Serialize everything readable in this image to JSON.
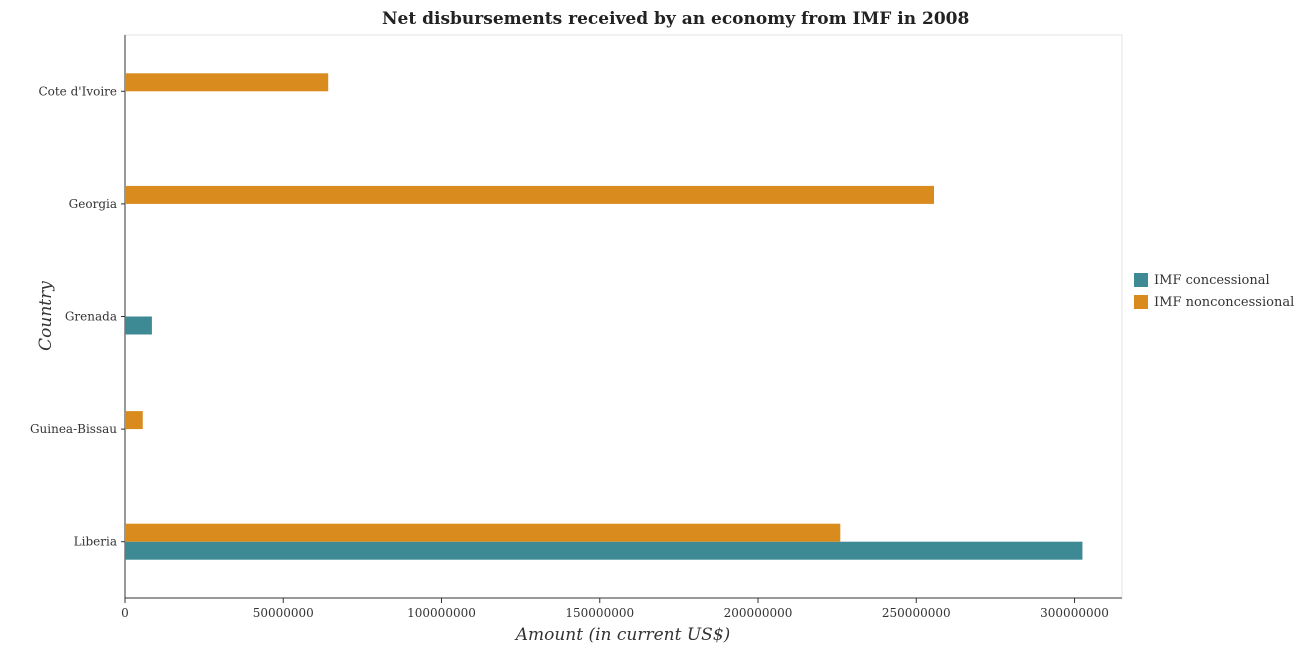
{
  "chart_data": {
    "type": "bar",
    "orientation": "horizontal",
    "title": "Net disbursements received by an economy from IMF in 2008",
    "xlabel": "Amount (in current US$)",
    "ylabel": "Country",
    "categories": [
      "Cote d'Ivoire",
      "Georgia",
      "Grenada",
      "Guinea-Bissau",
      "Liberia"
    ],
    "series": [
      {
        "name": "IMF concessional",
        "color": "#3d8a94",
        "values": [
          0,
          0,
          8500000,
          0,
          302500000
        ]
      },
      {
        "name": "IMF nonconcessional",
        "color": "#d98b1e",
        "values": [
          64200000,
          255600000,
          0,
          5600000,
          226000000
        ]
      }
    ],
    "xlim": [
      0,
      315000000
    ],
    "xticks": [
      0,
      50000000,
      100000000,
      150000000,
      200000000,
      250000000,
      300000000
    ],
    "xtick_labels": [
      "0",
      "50000000",
      "100000000",
      "150000000",
      "200000000",
      "250000000",
      "300000000"
    ],
    "legend_position": "right",
    "grid": false
  }
}
